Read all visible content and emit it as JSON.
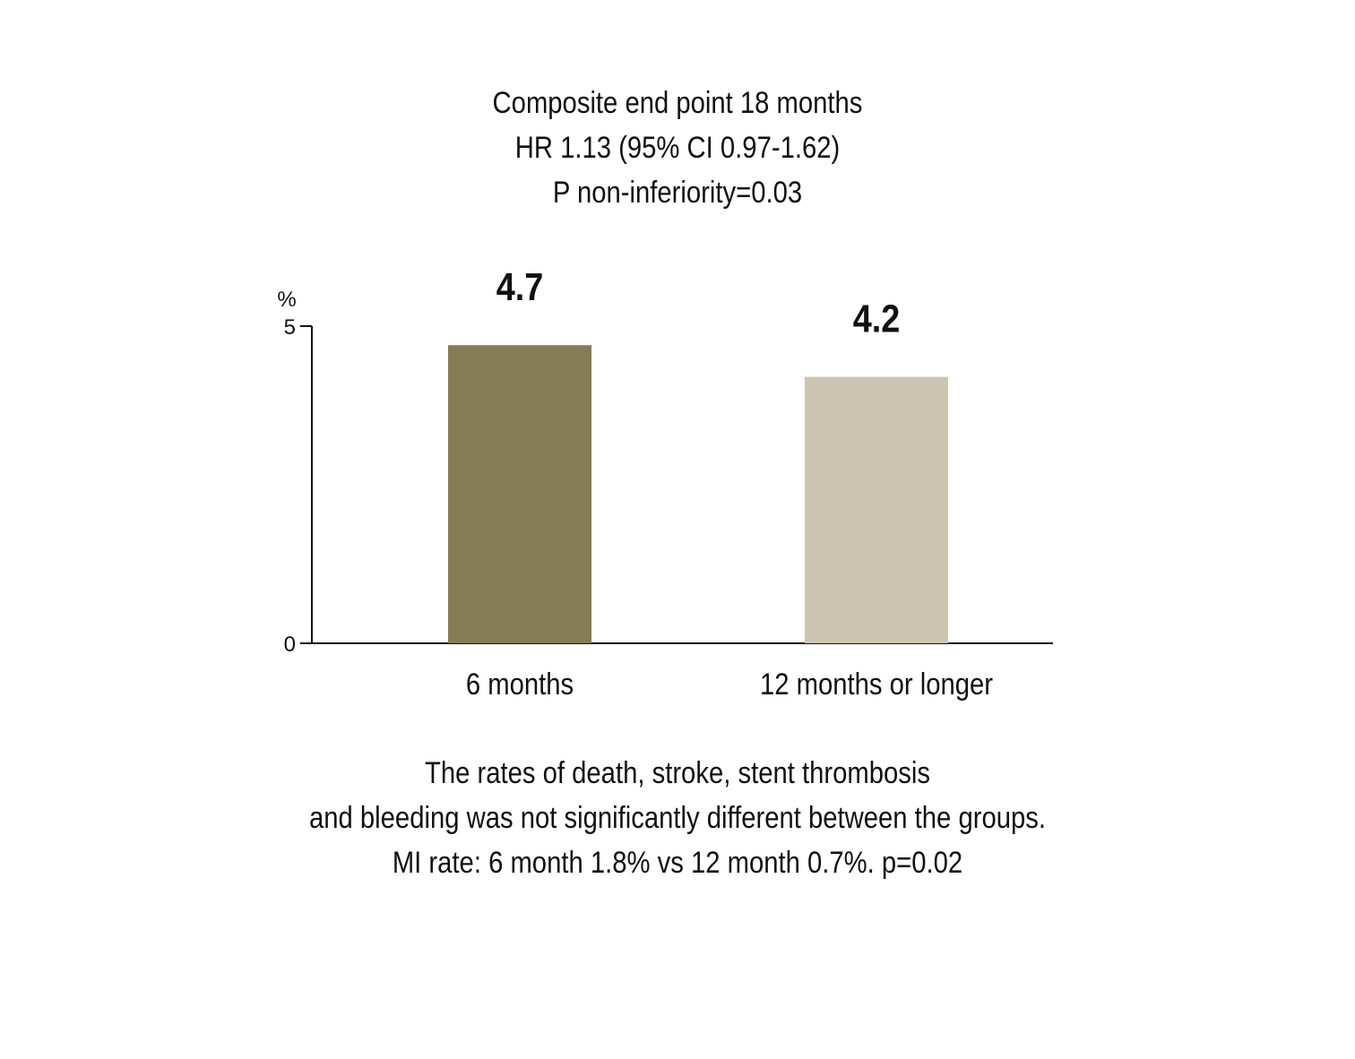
{
  "chart_data": {
    "type": "bar",
    "title_lines": [
      "Composite end point 18 months",
      "HR 1.13 (95% CI 0.97-1.62)",
      "P non-inferiority=0.03"
    ],
    "ylabel": "%",
    "ylim": [
      0,
      5
    ],
    "yticks": [
      0,
      5
    ],
    "categories": [
      "6 months",
      "12 months or longer"
    ],
    "values": [
      4.7,
      4.2
    ],
    "value_labels": [
      "4.7",
      "4.2"
    ],
    "colors": [
      "#857c56",
      "#cbc5b2"
    ],
    "grid": false,
    "footnote_lines": [
      "The rates of death, stroke, stent thrombosis",
      "and bleeding was not significantly different between the groups.",
      "MI rate: 6 month 1.8% vs 12 month 0.7%. p=0.02"
    ]
  }
}
